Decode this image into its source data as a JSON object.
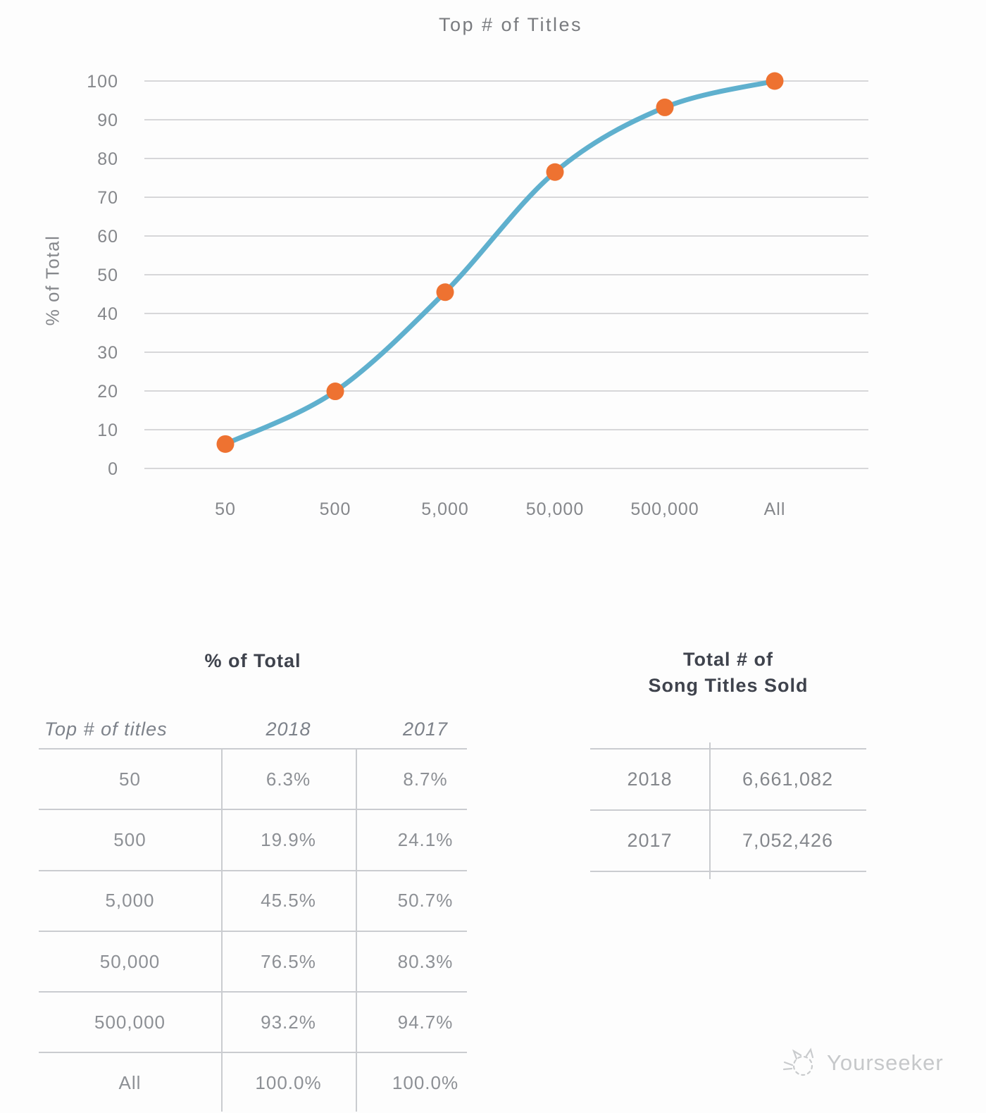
{
  "chart_data": {
    "type": "line",
    "title": "Top # of Titles",
    "xlabel": "",
    "ylabel": "% of Total",
    "categories": [
      "50",
      "500",
      "5,000",
      "50,000",
      "500,000",
      "All"
    ],
    "series": [
      {
        "name": "2018",
        "values": [
          6.3,
          19.9,
          45.5,
          76.5,
          93.2,
          100.0
        ]
      }
    ],
    "ylim": [
      0,
      100
    ],
    "y_ticks": [
      0,
      10,
      20,
      30,
      40,
      50,
      60,
      70,
      80,
      90,
      100
    ],
    "grid": true,
    "legend": false,
    "line_color": "#5fb0ce",
    "marker_color": "#ee7231",
    "grid_color": "#d7d7d9",
    "tick_color": "#85878b"
  },
  "left_table": {
    "title": "% of Total",
    "columns": [
      "Top # of titles",
      "2018",
      "2017"
    ],
    "rows": [
      [
        "50",
        "6.3%",
        "8.7%"
      ],
      [
        "500",
        "19.9%",
        "24.1%"
      ],
      [
        "5,000",
        "45.5%",
        "50.7%"
      ],
      [
        "50,000",
        "76.5%",
        "80.3%"
      ],
      [
        "500,000",
        "93.2%",
        "94.7%"
      ],
      [
        "All",
        "100.0%",
        "100.0%"
      ]
    ]
  },
  "right_table": {
    "title_line1": "Total # of",
    "title_line2": "Song Titles Sold",
    "rows": [
      [
        "2018",
        "6,661,082"
      ],
      [
        "2017",
        "7,052,426"
      ]
    ]
  },
  "footer": {
    "brand": "Yourseeker"
  }
}
